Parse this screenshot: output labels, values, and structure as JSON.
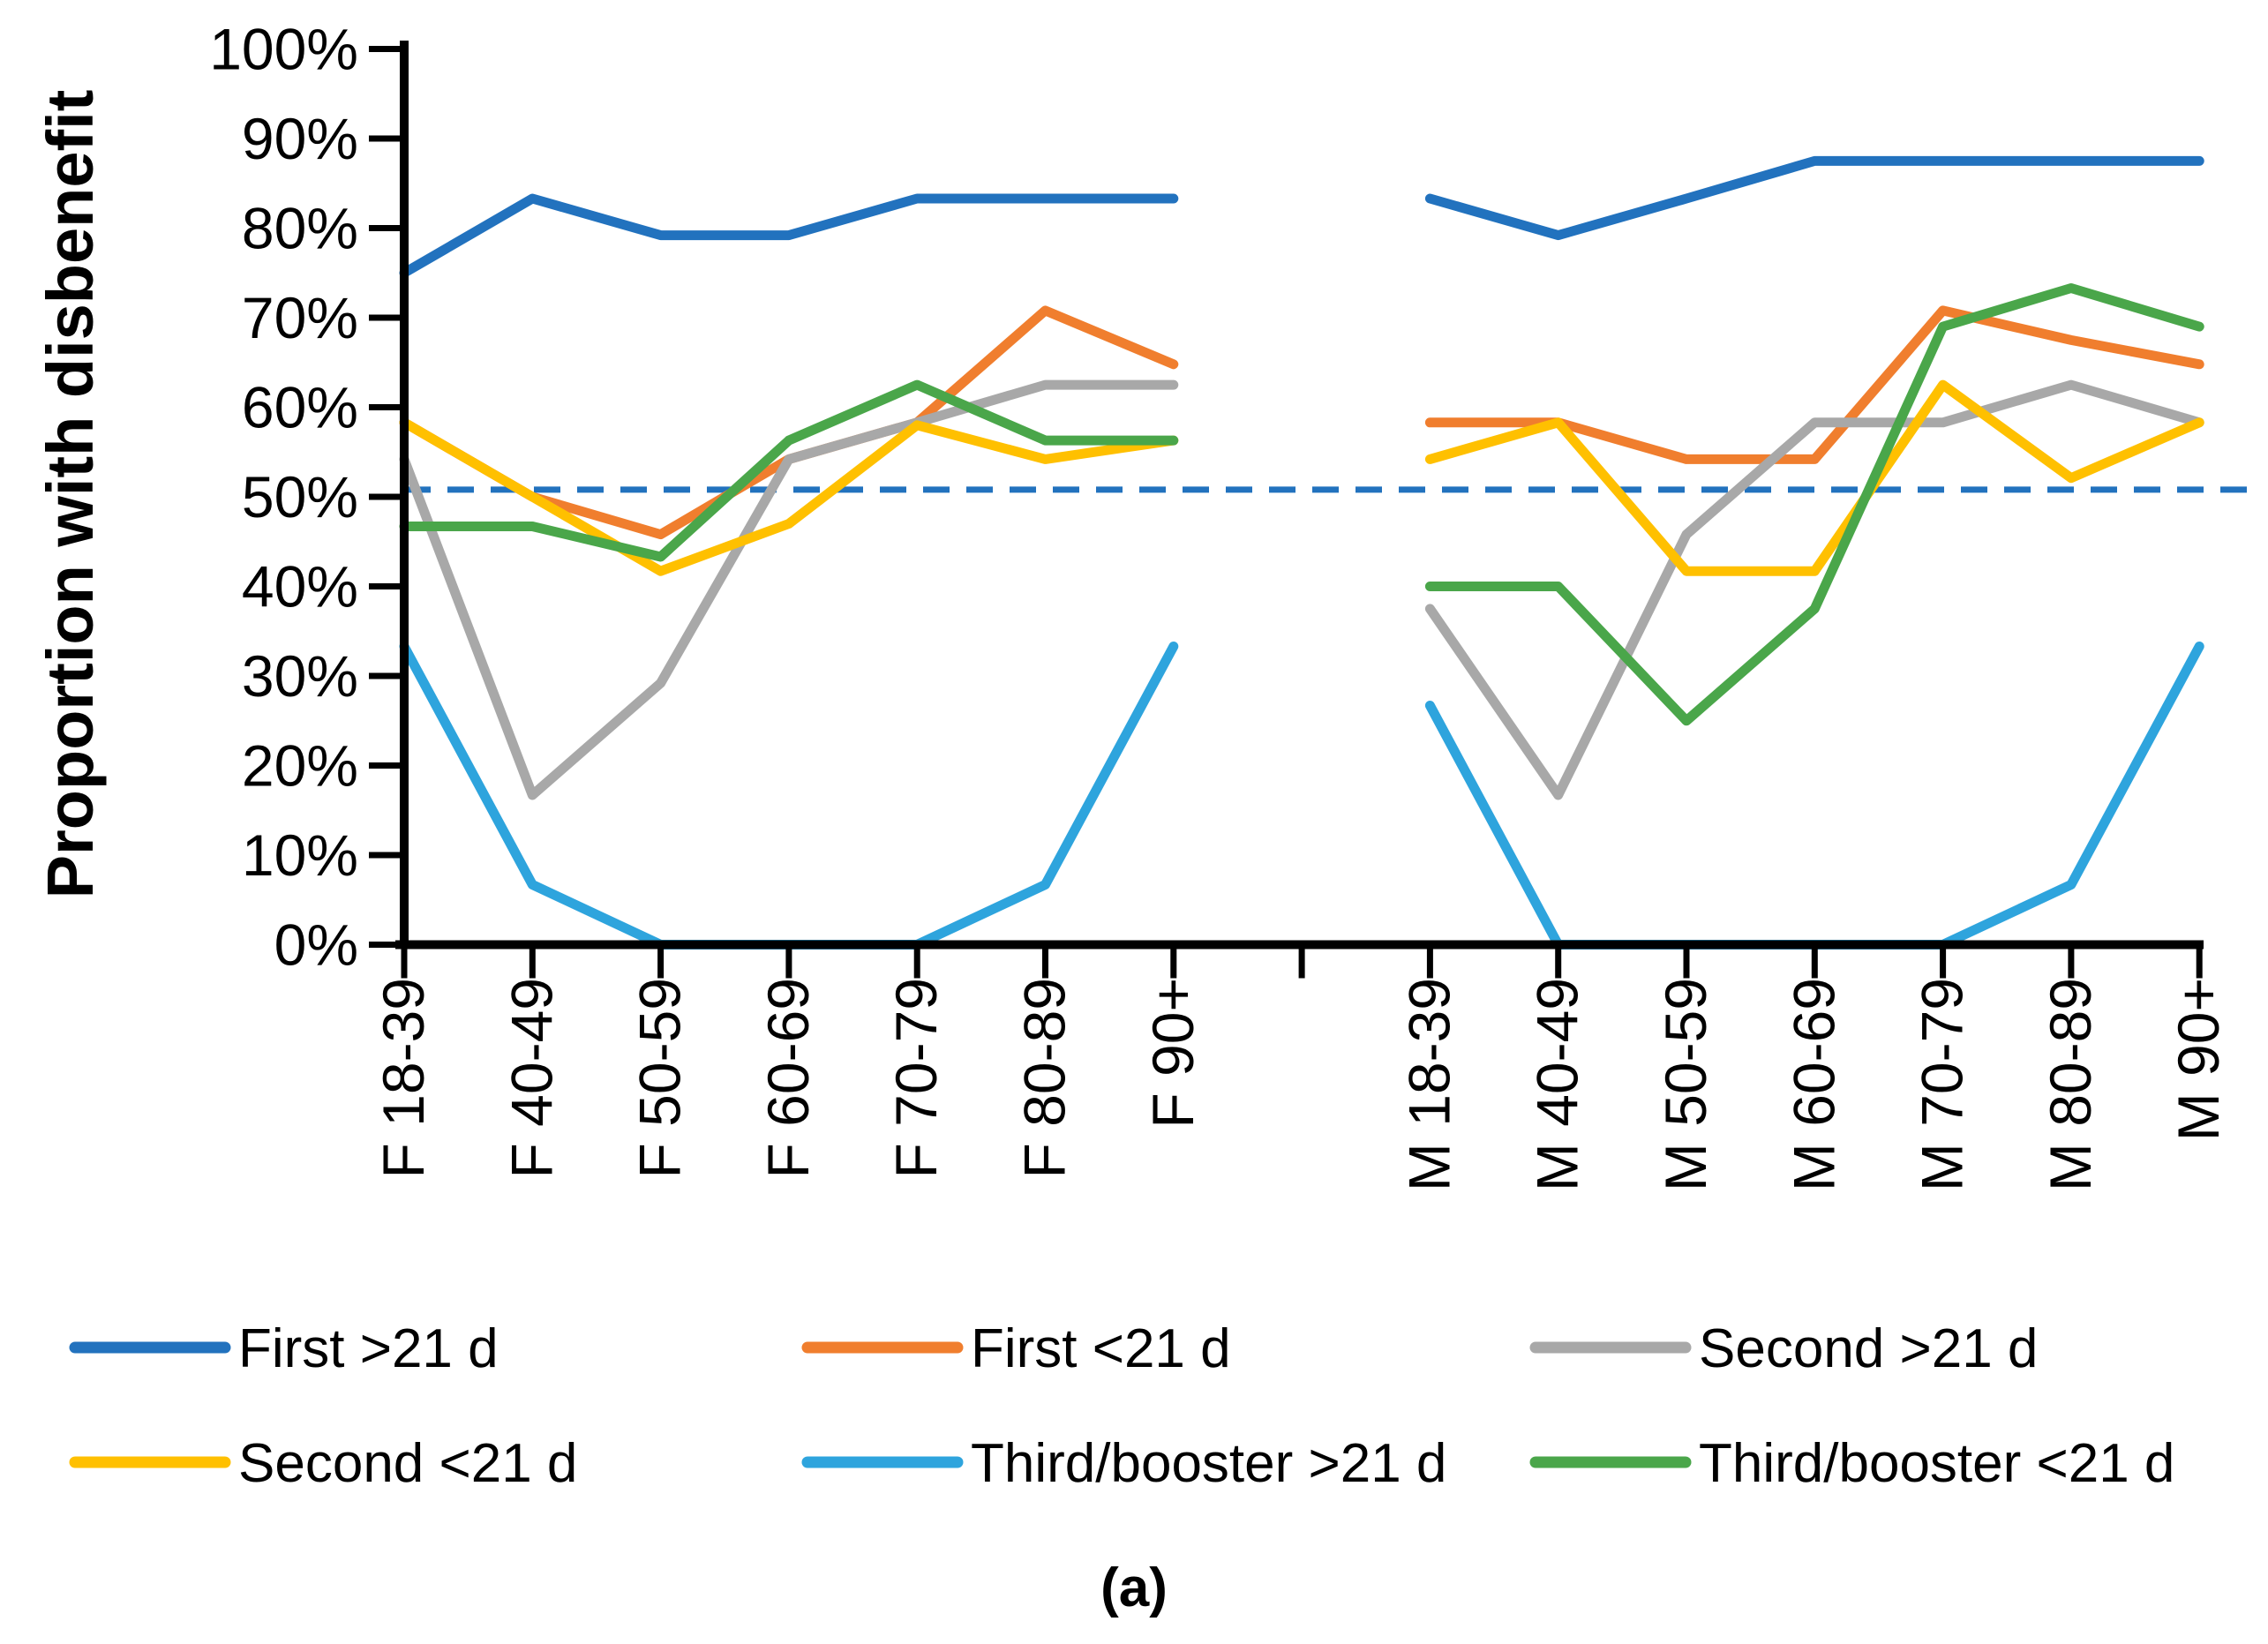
{
  "figure": {
    "caption": "(a)"
  },
  "chart_data": {
    "type": "line",
    "title": "",
    "xlabel": "",
    "ylabel": "Proportion with disbenefit",
    "ylim": [
      0,
      100
    ],
    "grid": false,
    "legend_position": "bottom",
    "yticklabels": [
      "0%",
      "10%",
      "20%",
      "30%",
      "40%",
      "50%",
      "60%",
      "70%",
      "80%",
      "90%",
      "100%"
    ],
    "categories": [
      "F 18-39",
      "F 40-49",
      "F 50-59",
      "F 60-69",
      "F 70-79",
      "F 80-89",
      "F 90+",
      "",
      "M 18-39",
      "M 40-49",
      "M 50-59",
      "M 60-69",
      "M 70-79",
      "M 80-89",
      "M 90+"
    ],
    "reference_line": {
      "value": 50.8,
      "style": "dashed",
      "color": "#2272BE"
    },
    "series": [
      {
        "name": "First >21 d",
        "color": "#2272BE",
        "values": [
          75,
          83.3,
          79.2,
          79.2,
          83.3,
          83.3,
          83.3,
          null,
          83.3,
          79.2,
          83.3,
          87.5,
          87.5,
          87.5,
          87.5
        ]
      },
      {
        "name": "First <21 d",
        "color": "#F07E2E",
        "values": [
          58.3,
          50,
          45.8,
          54.2,
          58.3,
          70.8,
          64.8,
          null,
          58.3,
          58.3,
          54.2,
          54.2,
          70.8,
          67.5,
          64.8
        ]
      },
      {
        "name": "Second >21 d",
        "color": "#A8A8A8",
        "values": [
          54.2,
          16.7,
          29.2,
          54.2,
          58.3,
          62.5,
          62.5,
          null,
          37.5,
          16.7,
          45.8,
          58.3,
          58.3,
          62.5,
          58.3
        ]
      },
      {
        "name": "Second <21 d",
        "color": "#FFC000",
        "values": [
          58.3,
          50,
          41.7,
          47,
          58,
          54.2,
          56.3,
          null,
          54.2,
          58.3,
          41.7,
          41.7,
          62.5,
          52.1,
          58.3
        ]
      },
      {
        "name": "Third/booster >21 d",
        "color": "#2EA4DD",
        "values": [
          33.3,
          6.7,
          0,
          0,
          0,
          6.7,
          33.3,
          null,
          26.7,
          0,
          0,
          0,
          0,
          6.7,
          33.3
        ]
      },
      {
        "name": "Third/booster <21 d",
        "color": "#4AA64A",
        "values": [
          46.7,
          46.7,
          43.3,
          56.3,
          62.5,
          56.3,
          56.3,
          null,
          40,
          40,
          25,
          37.5,
          69,
          73.3,
          69
        ]
      }
    ],
    "legend_layout": [
      [
        "First >21 d",
        "First <21 d",
        "Second >21 d"
      ],
      [
        "Second <21 d",
        "Third/booster >21 d",
        "Third/booster <21 d"
      ]
    ]
  }
}
